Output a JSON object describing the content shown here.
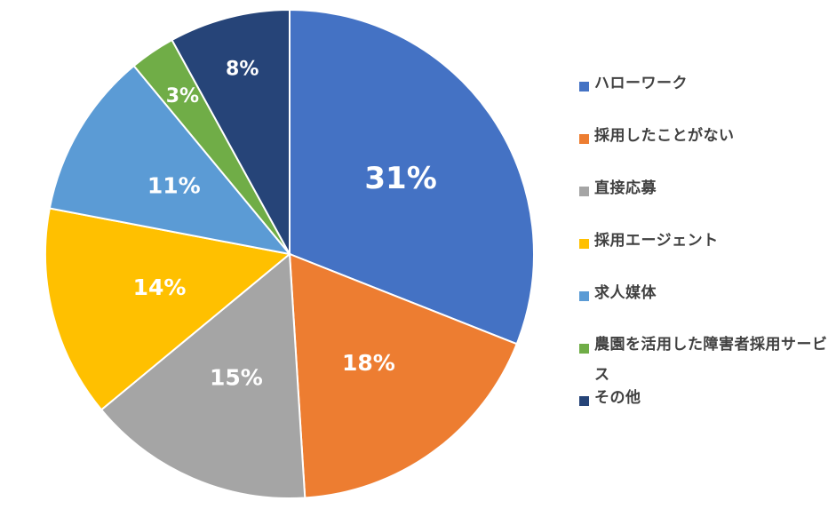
{
  "chart_data": {
    "type": "pie",
    "start_angle_deg": 0,
    "direction": "clockwise",
    "slices": [
      {
        "label": "ハローワーク",
        "value": 31,
        "display": "31%",
        "color": "#4472C4"
      },
      {
        "label": "採用したことがない",
        "value": 18,
        "display": "18%",
        "color": "#ED7D31"
      },
      {
        "label": "直接応募",
        "value": 15,
        "display": "15%",
        "color": "#A5A5A5"
      },
      {
        "label": "採用エージェント",
        "value": 14,
        "display": "14%",
        "color": "#FFC000"
      },
      {
        "label": "求人媒体",
        "value": 11,
        "display": "11%",
        "color": "#5B9BD5"
      },
      {
        "label": "農園を活用した障害者採用サービス",
        "value": 3,
        "display": "3%",
        "color": "#70AD47"
      },
      {
        "label": "その他",
        "value": 8,
        "display": "8%",
        "color": "#264478"
      }
    ],
    "legend_position": "right"
  }
}
